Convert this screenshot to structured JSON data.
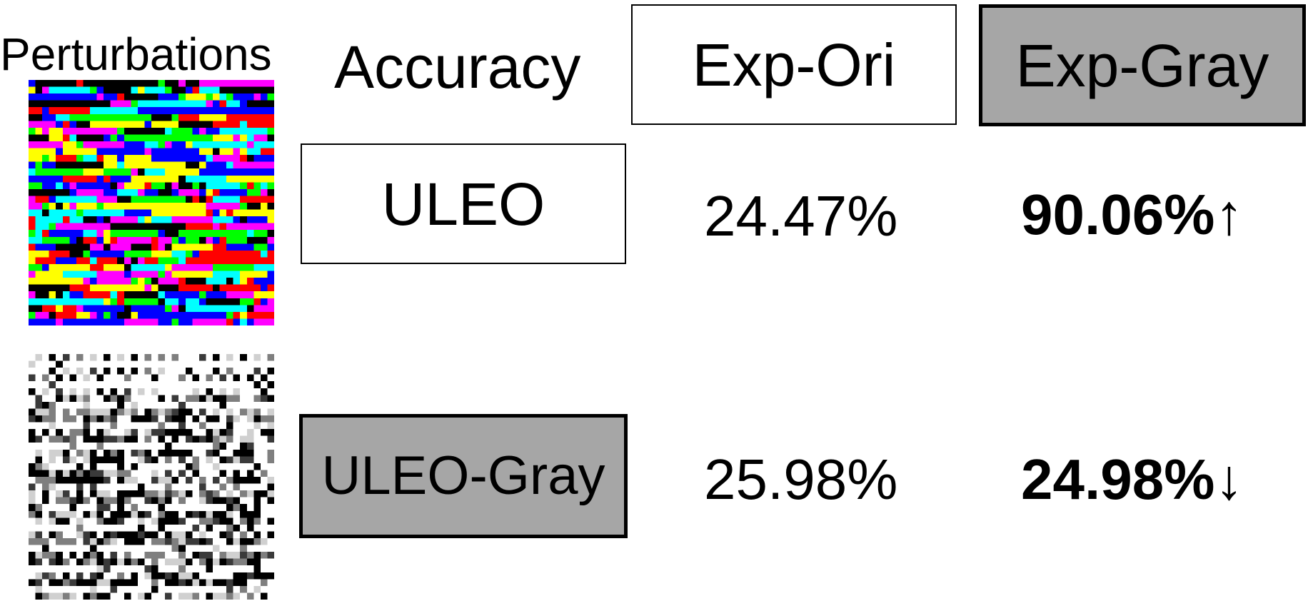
{
  "header": {
    "perturbations_label": "Perturbations",
    "accuracy_label": "Accuracy",
    "columns": [
      {
        "label": "Exp-Ori",
        "style": "plain"
      },
      {
        "label": "Exp-Gray",
        "style": "gray"
      }
    ]
  },
  "rows": [
    {
      "method": "ULEO",
      "method_style": "plain",
      "perturbation_image": "color-perturbation-pattern",
      "exp_ori": "24.47%",
      "exp_gray": "90.06%",
      "exp_gray_arrow": "↑"
    },
    {
      "method": "ULEO-Gray",
      "method_style": "gray",
      "perturbation_image": "grayscale-perturbation-pattern",
      "exp_ori": "25.98%",
      "exp_gray": "24.98%",
      "exp_gray_arrow": "↓"
    }
  ],
  "colors": {
    "gray_box_fill": "#a6a6a6",
    "border": "#000000",
    "background": "#ffffff"
  }
}
